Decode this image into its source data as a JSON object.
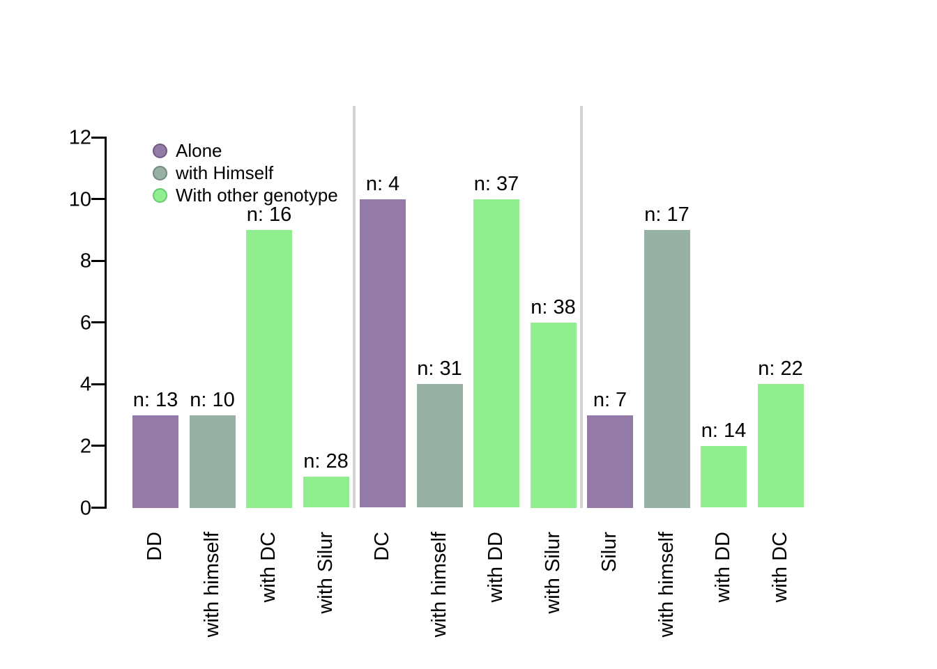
{
  "chart_data": {
    "type": "bar",
    "title": "",
    "xlabel": "",
    "ylabel": "",
    "ylim": [
      0,
      12
    ],
    "yticks": [
      0,
      2,
      4,
      6,
      8,
      10,
      12
    ],
    "grid": false,
    "legend_position": "top-left",
    "legend": [
      {
        "label": "Alone",
        "color": "#947AA7",
        "border": "#6F5B80"
      },
      {
        "label": "with Himself",
        "color": "#97B1A4",
        "border": "#72897C"
      },
      {
        "label": "With other genotype",
        "color": "#90EE90",
        "border": "#67C96E"
      }
    ],
    "bars": [
      {
        "category": "DD",
        "value": 3,
        "series": "Alone",
        "label": "n: 13",
        "group": 1
      },
      {
        "category": "with himself",
        "value": 3,
        "series": "with Himself",
        "label": "n: 10",
        "group": 1
      },
      {
        "category": "with DC",
        "value": 9,
        "series": "With other genotype",
        "label": "n: 16",
        "group": 1
      },
      {
        "category": "with Silur",
        "value": 1,
        "series": "With other genotype",
        "label": "n: 28",
        "group": 1
      },
      {
        "category": "DC",
        "value": 10,
        "series": "Alone",
        "label": "n: 4",
        "group": 2
      },
      {
        "category": "with himself",
        "value": 4,
        "series": "with Himself",
        "label": "n: 31",
        "group": 2
      },
      {
        "category": "with DD",
        "value": 10,
        "series": "With other genotype",
        "label": "n: 37",
        "group": 2
      },
      {
        "category": "with Silur",
        "value": 6,
        "series": "With other genotype",
        "label": "n: 38",
        "group": 2
      },
      {
        "category": "Silur",
        "value": 3,
        "series": "Alone",
        "label": "n: 7",
        "group": 3
      },
      {
        "category": "with himself",
        "value": 9,
        "series": "with Himself",
        "label": "n: 17",
        "group": 3
      },
      {
        "category": "with DD",
        "value": 2,
        "series": "With other genotype",
        "label": "n: 14",
        "group": 3
      },
      {
        "category": "with DC",
        "value": 4,
        "series": "With other genotype",
        "label": "n: 22",
        "group": 3
      }
    ],
    "separators_after_bar_index": [
      3,
      7
    ],
    "colors": {
      "axis": "#000000",
      "separator": "#D2D2D2",
      "background": "#FFFFFF",
      "text": "#000000"
    }
  }
}
